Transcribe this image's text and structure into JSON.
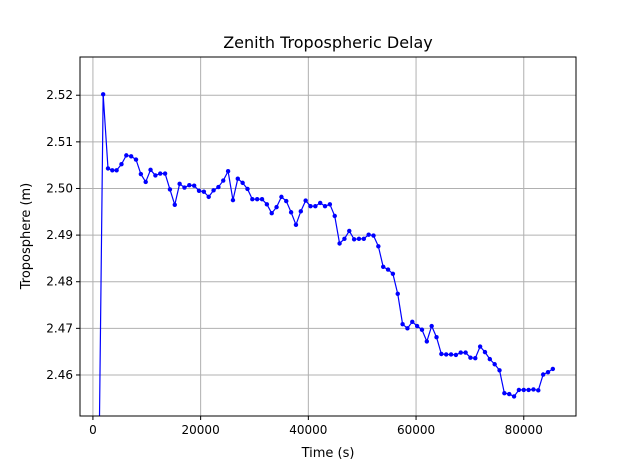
{
  "chart_data": {
    "type": "line",
    "title": "Zenith Tropospheric Delay",
    "xlabel": "Time (s)",
    "ylabel": "Troposphere (m)",
    "xlim": [
      -2400,
      89700
    ],
    "ylim": [
      2.4512,
      2.5282
    ],
    "xticks": [
      0,
      20000,
      40000,
      60000,
      80000
    ],
    "xtick_labels": [
      "0",
      "20000",
      "40000",
      "60000",
      "80000"
    ],
    "yticks": [
      2.46,
      2.47,
      2.48,
      2.49,
      2.5,
      2.51,
      2.52
    ],
    "ytick_labels": [
      "2.46",
      "2.47",
      "2.48",
      "2.49",
      "2.50",
      "2.51",
      "2.52"
    ],
    "grid": true,
    "legend": null,
    "line_color": "#0000ff",
    "marker": "circle",
    "series": [
      {
        "name": "",
        "x": [
          1200,
          1900,
          2800,
          3600,
          4400,
          5300,
          6200,
          7100,
          8000,
          8900,
          9800,
          10700,
          11600,
          12500,
          13400,
          14300,
          15200,
          16100,
          17000,
          17900,
          18800,
          19700,
          20600,
          21500,
          22400,
          23300,
          24200,
          25100,
          26000,
          26900,
          27800,
          28700,
          29600,
          30500,
          31400,
          32300,
          33200,
          34100,
          35000,
          35900,
          36800,
          37700,
          38600,
          39500,
          40400,
          41300,
          42200,
          43100,
          44000,
          44900,
          45800,
          46700,
          47600,
          48500,
          49400,
          50300,
          51200,
          52100,
          53000,
          53900,
          54800,
          55700,
          56600,
          57500,
          58400,
          59300,
          60200,
          61100,
          62000,
          62900,
          63800,
          64700,
          65600,
          66500,
          67400,
          68300,
          69200,
          70100,
          71000,
          71900,
          72800,
          73700,
          74600,
          75500,
          76400,
          77300,
          78200,
          79100,
          80000,
          80900,
          81800,
          82700,
          83600,
          84500,
          85400
        ],
        "y": [
          2.449,
          2.5202,
          2.5043,
          2.5039,
          2.5039,
          2.5052,
          2.5071,
          2.5069,
          2.5062,
          2.5031,
          2.5014,
          2.504,
          2.5028,
          2.5032,
          2.5032,
          2.4998,
          2.4965,
          2.501,
          2.5002,
          2.5007,
          2.5006,
          2.4995,
          2.4993,
          2.4982,
          2.4996,
          2.5003,
          2.5017,
          2.5037,
          2.4975,
          2.5021,
          2.5012,
          2.4999,
          2.4977,
          2.4977,
          2.4977,
          2.4966,
          2.4947,
          2.496,
          2.4982,
          2.4973,
          2.4949,
          2.4922,
          2.4951,
          2.4974,
          2.4962,
          2.4962,
          2.4969,
          2.4962,
          2.4966,
          2.4941,
          2.4882,
          2.4892,
          2.4909,
          2.4891,
          2.4892,
          2.4892,
          2.4901,
          2.4899,
          2.4876,
          2.4832,
          2.4826,
          2.4817,
          2.4774,
          2.4709,
          2.47,
          2.4714,
          2.4705,
          2.4697,
          2.4672,
          2.4705,
          2.4681,
          2.4645,
          2.4644,
          2.4644,
          2.4643,
          2.4648,
          2.4648,
          2.4637,
          2.4636,
          2.4661,
          2.4649,
          2.4634,
          2.4623,
          2.461,
          2.4561,
          2.4559,
          2.4554,
          2.4568,
          2.4568,
          2.4568,
          2.4569,
          2.4567,
          2.4601,
          2.4606,
          2.4613
        ]
      }
    ]
  }
}
